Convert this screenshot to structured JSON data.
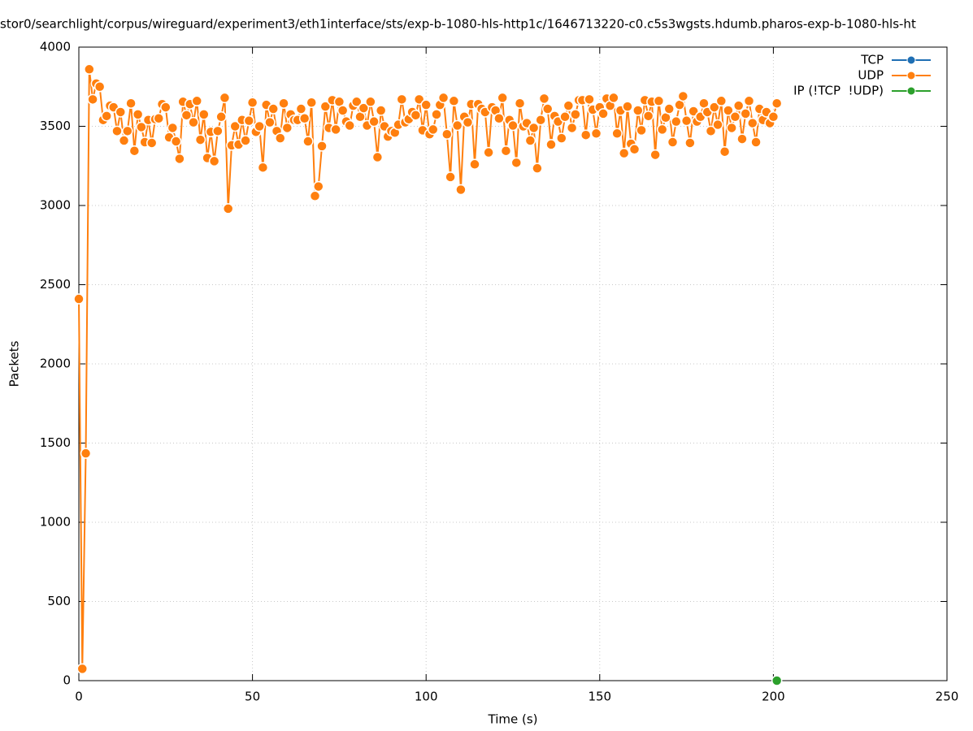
{
  "chart_data": {
    "type": "line",
    "title": "stor0/searchlight/corpus/wireguard/experiment3/eth1interface/sts/exp-b-1080-hls-http1c/1646713220-c0.c5s3wgsts.hdumb.pharos-exp-b-1080-hls-ht",
    "xlabel": "Time (s)",
    "ylabel": "Packets",
    "xlim": [
      0,
      250
    ],
    "xticks": [
      0,
      50,
      100,
      150,
      200,
      250
    ],
    "ylim": [
      0,
      4000
    ],
    "yticks": [
      0,
      500,
      1000,
      1500,
      2000,
      2500,
      3000,
      3500,
      4000
    ],
    "grid": true,
    "legend": "top-right",
    "series": [
      {
        "name": "TCP",
        "color": "#1f6fb4",
        "x": [],
        "values": []
      },
      {
        "name": "UDP",
        "color": "#ff7f0e",
        "x": [
          0,
          1,
          2,
          3,
          4,
          5,
          6,
          7,
          8,
          9,
          10,
          11,
          12,
          13,
          14,
          15,
          16,
          17,
          18,
          19,
          20,
          21,
          22,
          23,
          24,
          25,
          26,
          27,
          28,
          29,
          30,
          31,
          32,
          33,
          34,
          35,
          36,
          37,
          38,
          39,
          40,
          41,
          42,
          43,
          44,
          45,
          46,
          47,
          48,
          49,
          50,
          51,
          52,
          53,
          54,
          55,
          56,
          57,
          58,
          59,
          60,
          61,
          62,
          63,
          64,
          65,
          66,
          67,
          68,
          69,
          70,
          71,
          72,
          73,
          74,
          75,
          76,
          77,
          78,
          79,
          80,
          81,
          82,
          83,
          84,
          85,
          86,
          87,
          88,
          89,
          90,
          91,
          92,
          93,
          94,
          95,
          96,
          97,
          98,
          99,
          100,
          101,
          102,
          103,
          104,
          105,
          106,
          107,
          108,
          109,
          110,
          111,
          112,
          113,
          114,
          115,
          116,
          117,
          118,
          119,
          120,
          121,
          122,
          123,
          124,
          125,
          126,
          127,
          128,
          129,
          130,
          131,
          132,
          133,
          134,
          135,
          136,
          137,
          138,
          139,
          140,
          141,
          142,
          143,
          144,
          145,
          146,
          147,
          148,
          149,
          150,
          151,
          152,
          153,
          154,
          155,
          156,
          157,
          158,
          159,
          160,
          161,
          162,
          163,
          164,
          165,
          166,
          167,
          168,
          169,
          170,
          171,
          172,
          173,
          174,
          175,
          176,
          177,
          178,
          179,
          180,
          181,
          182,
          183,
          184,
          185,
          186,
          187,
          188,
          189,
          190,
          191,
          192,
          193,
          194,
          195,
          196,
          197,
          198,
          199,
          200,
          201
        ],
        "values": [
          2410,
          75,
          1435,
          3860,
          3670,
          3770,
          3750,
          3540,
          3565,
          3630,
          3620,
          3470,
          3590,
          3410,
          3470,
          3645,
          3345,
          3575,
          3495,
          3400,
          3540,
          3395,
          3545,
          3550,
          3640,
          3620,
          3430,
          3490,
          3405,
          3295,
          3655,
          3570,
          3640,
          3525,
          3660,
          3415,
          3575,
          3300,
          3465,
          3280,
          3470,
          3560,
          3680,
          2980,
          3380,
          3500,
          3385,
          3540,
          3410,
          3535,
          3650,
          3465,
          3500,
          3240,
          3635,
          3525,
          3610,
          3470,
          3425,
          3645,
          3490,
          3575,
          3540,
          3540,
          3610,
          3550,
          3405,
          3650,
          3060,
          3120,
          3375,
          3625,
          3490,
          3665,
          3480,
          3655,
          3600,
          3530,
          3505,
          3630,
          3655,
          3560,
          3615,
          3505,
          3655,
          3530,
          3305,
          3600,
          3500,
          3435,
          3470,
          3460,
          3510,
          3670,
          3525,
          3545,
          3590,
          3570,
          3670,
          3475,
          3635,
          3450,
          3480,
          3575,
          3635,
          3680,
          3450,
          3180,
          3660,
          3505,
          3100,
          3560,
          3525,
          3640,
          3260,
          3640,
          3610,
          3590,
          3335,
          3620,
          3600,
          3550,
          3680,
          3345,
          3540,
          3505,
          3270,
          3645,
          3500,
          3520,
          3410,
          3490,
          3235,
          3540,
          3675,
          3610,
          3385,
          3565,
          3530,
          3425,
          3560,
          3630,
          3490,
          3575,
          3665,
          3665,
          3445,
          3670,
          3605,
          3455,
          3620,
          3580,
          3675,
          3630,
          3680,
          3455,
          3600,
          3330,
          3625,
          3390,
          3355,
          3600,
          3475,
          3665,
          3565,
          3655,
          3320,
          3660,
          3480,
          3555,
          3610,
          3400,
          3530,
          3635,
          3690,
          3535,
          3395,
          3595,
          3530,
          3560,
          3645,
          3590,
          3470,
          3620,
          3510,
          3660,
          3340,
          3600,
          3490,
          3560,
          3630,
          3420,
          3580,
          3660,
          3520,
          3400,
          3610,
          3540,
          3590,
          3520,
          3560,
          3645
        ]
      },
      {
        "name": "IP (!TCP  !UDP)",
        "color": "#2ca02c",
        "x": [
          201
        ],
        "values": [
          0
        ]
      }
    ]
  }
}
